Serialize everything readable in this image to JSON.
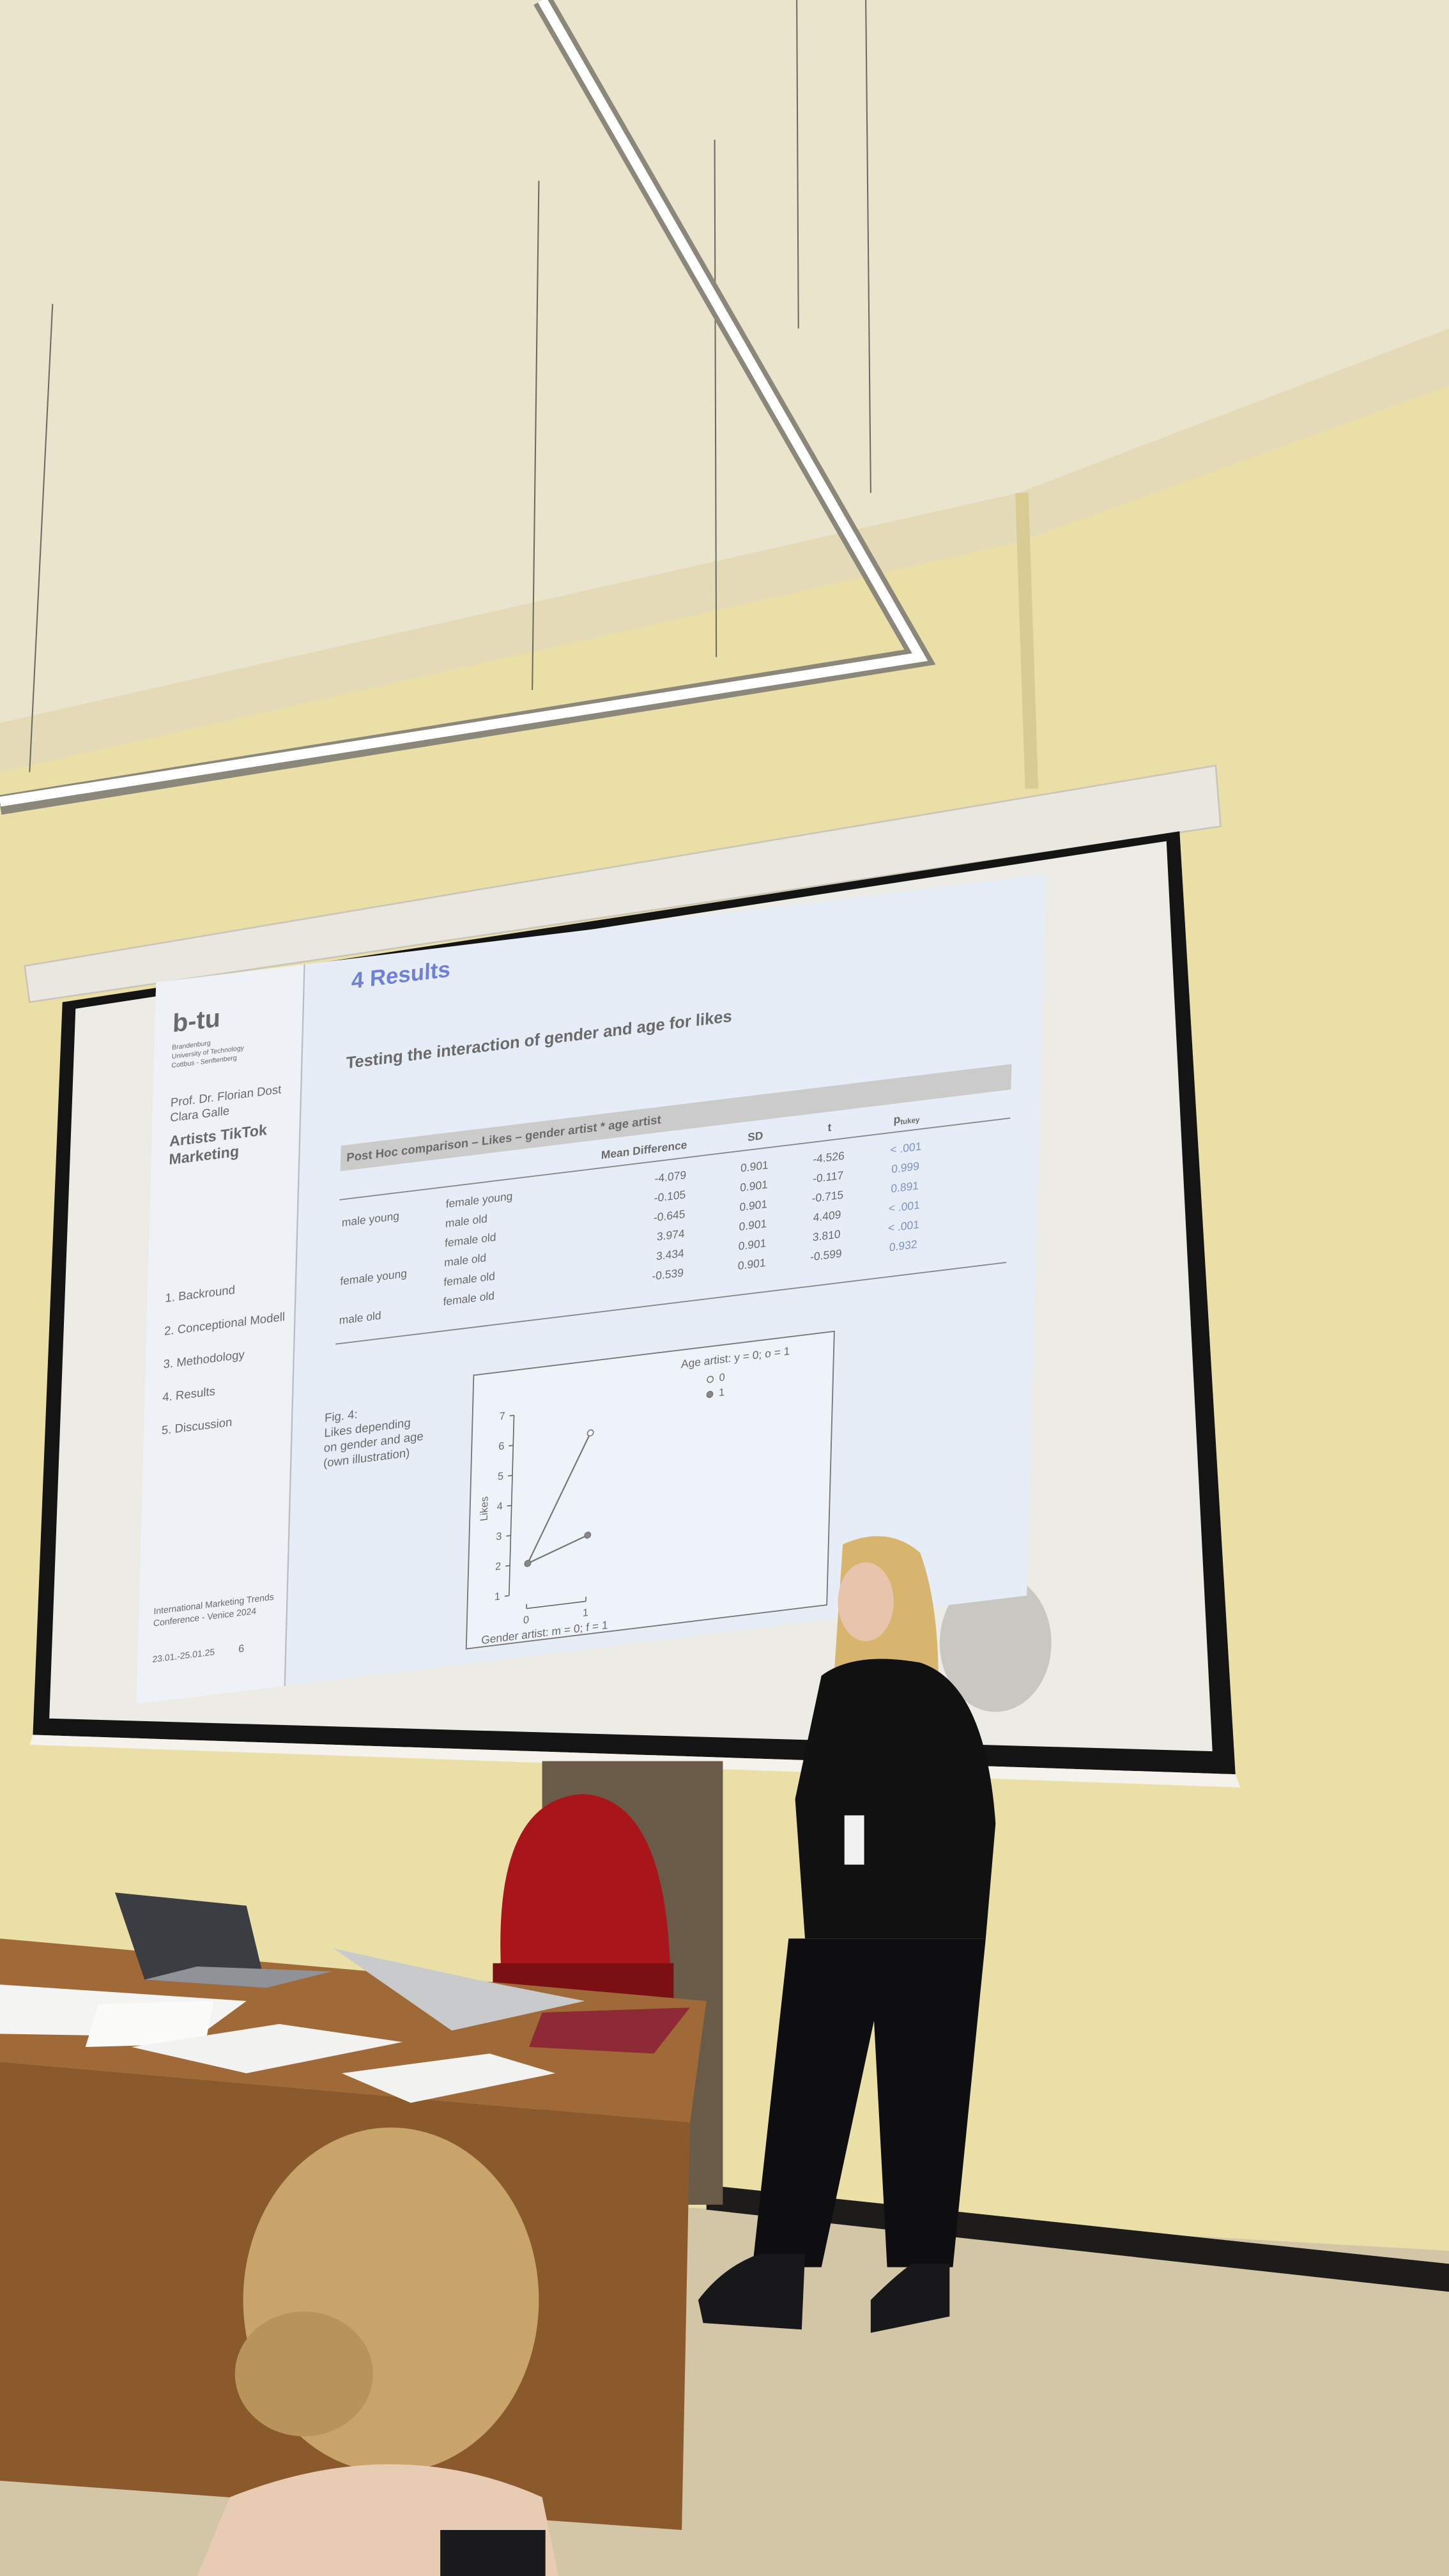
{
  "slide": {
    "sidebar": {
      "logo": "b-tu",
      "institution": [
        "Brandenburg",
        "University of Technology",
        "Cottbus - Senftenberg"
      ],
      "authors": [
        "Prof. Dr. Florian Dost",
        "Clara Galle"
      ],
      "project": [
        "Artists TikTok",
        "Marketing"
      ],
      "nav": [
        "1. Backround",
        "2. Conceptional Modell",
        "3. Methodology",
        "4. Results",
        "5. Discussion"
      ],
      "footer": [
        "International Marketing Trends",
        "Conference - Venice 2024"
      ],
      "date": "23.01.-25.01.25",
      "page": 6
    },
    "title": "4 Results",
    "subtitle": "Testing the interaction of gender and age for likes",
    "table": {
      "caption": "Post Hoc comparison – Likes – gender artist * age artist",
      "columns": [
        "Mean Difference",
        "SD",
        "t"
      ],
      "p_column": {
        "main": "p",
        "sub": "tukey"
      },
      "rows": [
        {
          "group": "male young",
          "comparison": "female young",
          "values": [
            "-4.079",
            "0.901",
            "-4.526",
            "< .001"
          ]
        },
        {
          "comparison": "male old",
          "values": [
            "-0.105",
            "0.901",
            "-0.117",
            "0.999"
          ]
        },
        {
          "comparison": "female old",
          "values": [
            "-0.645",
            "0.901",
            "-0.715",
            "0.891"
          ]
        },
        {
          "group": "female young",
          "comparison": "male old",
          "values": [
            "3.974",
            "0.901",
            "4.409",
            "< .001"
          ]
        },
        {
          "comparison": "female old",
          "values": [
            "3.434",
            "0.901",
            "3.810",
            "< .001"
          ]
        },
        {
          "group": "male old",
          "comparison": "female old",
          "values": [
            "-0.539",
            "0.901",
            "-0.599",
            "0.932"
          ]
        }
      ]
    },
    "figure": {
      "caption": [
        "Fig. 4:",
        "Likes depending",
        "on gender and age",
        "(own illustration)"
      ],
      "type": "line",
      "ylabel": "Likes",
      "xlabel": "Gender artist: m = 0; f = 1",
      "legend_title": "Age artist: y = 0; o = 1",
      "x": [
        0,
        1
      ],
      "xlim": [
        0,
        1
      ],
      "xticks": [
        0,
        1
      ],
      "ylim": [
        1,
        7
      ],
      "yticks": [
        1,
        2,
        3,
        4,
        5,
        6,
        7
      ],
      "series": [
        {
          "name": "0",
          "marker": "open",
          "values": [
            2,
            6.1
          ]
        },
        {
          "name": "1",
          "marker": "filled",
          "values": [
            2,
            2.7
          ]
        }
      ]
    }
  }
}
